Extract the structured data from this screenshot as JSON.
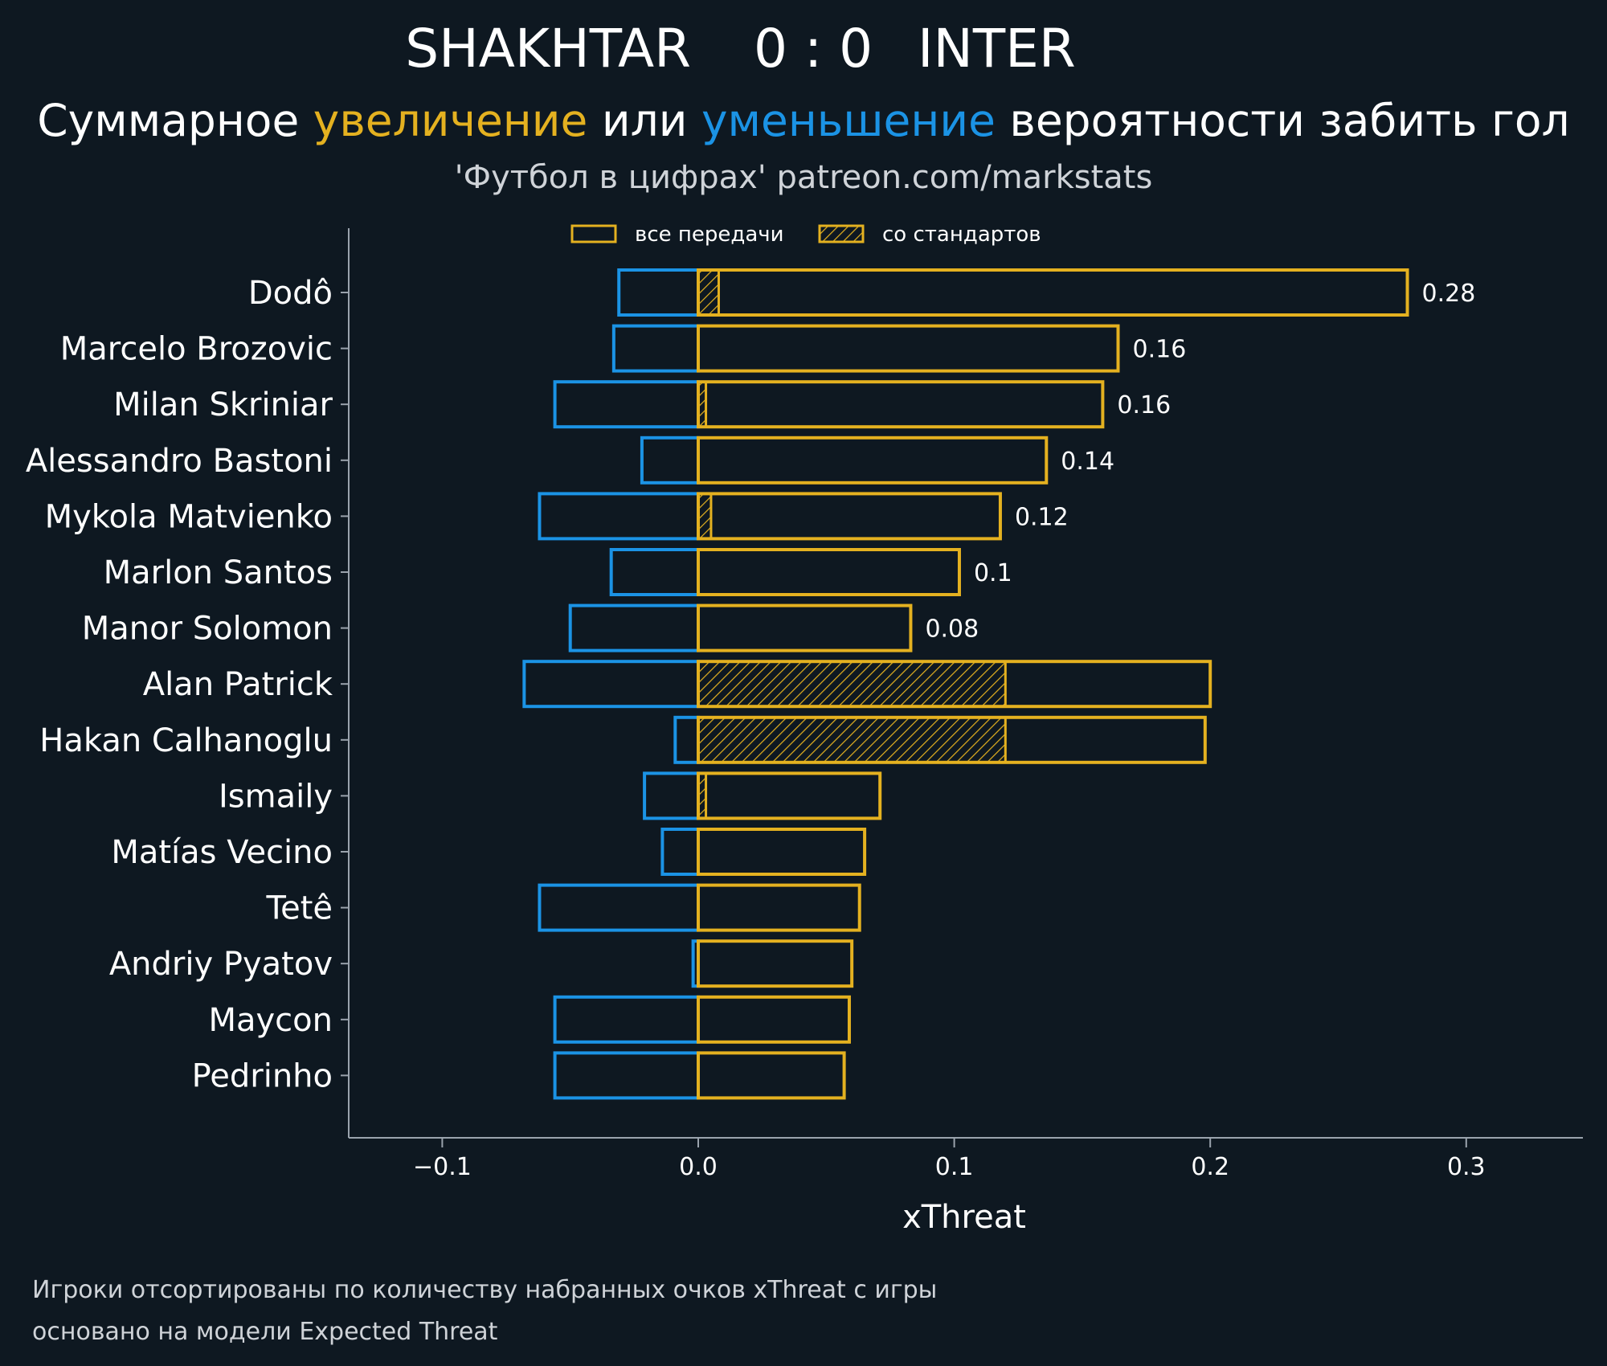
{
  "header": {
    "team_home": "SHAKHTAR",
    "score": "0 : 0",
    "team_away": "INTER",
    "subtitle_pre": "Суммарное ",
    "subtitle_increase": "увеличение",
    "subtitle_mid": " или ",
    "subtitle_decrease": "уменьшение",
    "subtitle_post": " вероятности забить гол",
    "source": "'Футбол в цифрах' patreon.com/markstats"
  },
  "colors": {
    "background": "#0e1821",
    "increase": "#e4b120",
    "decrease": "#1b93e5",
    "axis": "#9aa3ad",
    "text": "#ffffff"
  },
  "legend": {
    "all_passes": "все передачи",
    "set_pieces": "со стандартов"
  },
  "chart_data": {
    "type": "bar",
    "orientation": "horizontal",
    "xlabel": "xThreat",
    "xlim": [
      -0.137,
      0.345
    ],
    "xticks": [
      -0.1,
      0.0,
      0.1,
      0.2,
      0.3
    ],
    "xtick_labels": [
      "−0.1",
      "0.0",
      "0.1",
      "0.2",
      "0.3"
    ],
    "categories": [
      "Dodô",
      "Marcelo Brozovic",
      "Milan Skriniar",
      "Alessandro Bastoni",
      "Mykola Matvienko",
      "Marlon Santos",
      "Manor Solomon",
      "Alan Patrick",
      "Hakan Calhanoglu",
      "Ismaily",
      "Matías Vecino",
      "Tetê",
      "Andriy Pyatov",
      "Maycon",
      "Pedrinho"
    ],
    "series": [
      {
        "name": "увеличение (все передачи)",
        "values": [
          0.277,
          0.164,
          0.158,
          0.136,
          0.118,
          0.102,
          0.083,
          0.2,
          0.198,
          0.071,
          0.065,
          0.063,
          0.06,
          0.059,
          0.057
        ]
      },
      {
        "name": "со стандартов",
        "values": [
          0.008,
          0,
          0.003,
          0,
          0.005,
          0,
          0,
          0.12,
          0.12,
          0.003,
          0,
          0,
          0,
          0,
          0
        ]
      },
      {
        "name": "уменьшение",
        "values": [
          -0.031,
          -0.033,
          -0.056,
          -0.022,
          -0.062,
          -0.034,
          -0.05,
          -0.068,
          -0.009,
          -0.021,
          -0.014,
          -0.062,
          -0.002,
          -0.056,
          -0.056
        ]
      }
    ],
    "value_labels": [
      "0.28",
      "0.16",
      "0.16",
      "0.14",
      "0.12",
      "0.1",
      "0.08",
      "",
      "",
      "",
      "",
      "",
      "",
      "",
      ""
    ],
    "legend_position": "top"
  },
  "footnotes": [
    "Игроки отсортированы по количеству набранных очков xThreat с игры",
    "основано на модели Expected Threat"
  ]
}
